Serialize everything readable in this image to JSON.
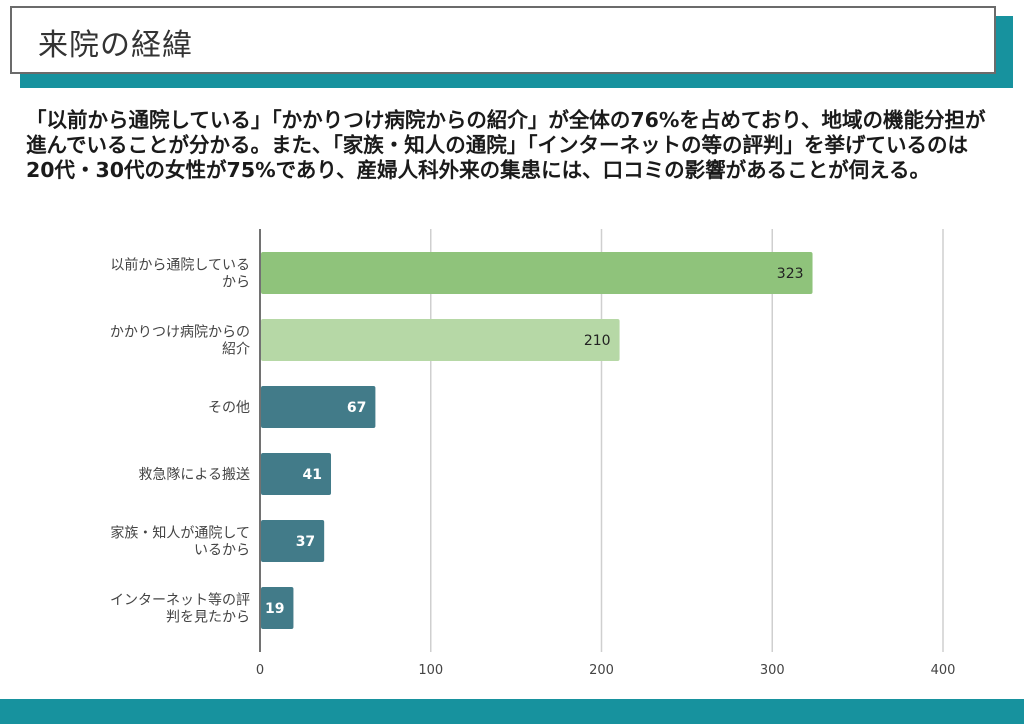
{
  "page": {
    "title": "来院の経緯",
    "description": "「以前から通院している」「かかりつけ病院からの紹介」が全体の76%を占めており、地域の機能分担が進んでいることが分かる。また、「家族・知人の通院」「インターネットの等の評判」を挙げているのは20代・30代の女性が75%であり、産婦人科外来の集患には、口コミの影響があることが伺える。"
  },
  "colors": {
    "accent": "#17929e",
    "bar_top": "#8fc37b",
    "bar_second": "#b6d8a6",
    "bar_other": "#427b89"
  },
  "chart_data": {
    "type": "bar",
    "orientation": "horizontal",
    "categories": [
      [
        "以前から通院している",
        "から"
      ],
      [
        "かかりつけ病院からの",
        "紹介"
      ],
      [
        "その他"
      ],
      [
        "救急隊による搬送"
      ],
      [
        "家族・知人が通院して",
        "いるから"
      ],
      [
        "インターネット等の評",
        "判を見たから"
      ]
    ],
    "values": [
      323,
      210,
      67,
      41,
      37,
      19
    ],
    "value_labels": [
      "323",
      "210",
      "67",
      "41",
      "37",
      "19"
    ],
    "bar_colors": [
      "#8fc37b",
      "#b6d8a6",
      "#427b89",
      "#427b89",
      "#427b89",
      "#427b89"
    ],
    "label_colors": [
      "#222222",
      "#222222",
      "#ffffff",
      "#ffffff",
      "#ffffff",
      "#ffffff"
    ],
    "xlim": [
      0,
      400
    ],
    "xticks": [
      0,
      100,
      200,
      300,
      400
    ],
    "xtick_labels": [
      "0",
      "100",
      "200",
      "300",
      "400"
    ],
    "grid": true,
    "legend": "none"
  }
}
